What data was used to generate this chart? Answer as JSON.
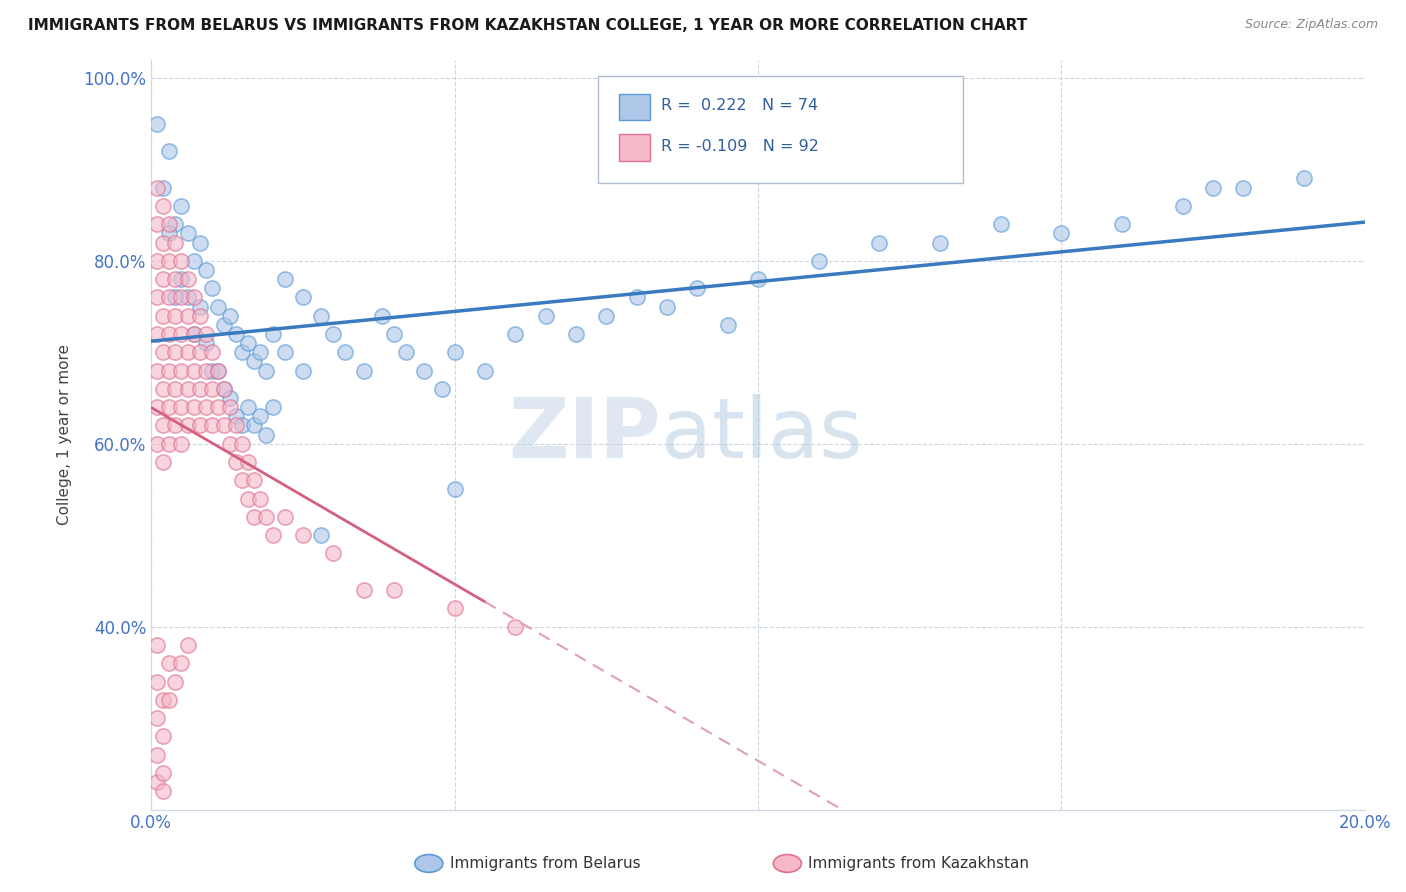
{
  "title": "IMMIGRANTS FROM BELARUS VS IMMIGRANTS FROM KAZAKHSTAN COLLEGE, 1 YEAR OR MORE CORRELATION CHART",
  "source": "Source: ZipAtlas.com",
  "ylabel": "College, 1 year or more",
  "xlabel_blue": "Immigrants from Belarus",
  "xlabel_pink": "Immigrants from Kazakhstan",
  "r_blue": 0.222,
  "n_blue": 74,
  "r_pink": -0.109,
  "n_pink": 92,
  "xlim": [
    0.0,
    0.2
  ],
  "ylim": [
    0.2,
    1.02
  ],
  "blue_color": "#aec6e8",
  "blue_edge_color": "#5b9bd5",
  "pink_color": "#f4b8c8",
  "pink_edge_color": "#e07090",
  "blue_line_color": "#3a7abf",
  "pink_line_color": "#d46080",
  "pink_dash_color": "#e0a0b4",
  "watermark_zip": "ZIP",
  "watermark_atlas": "atlas",
  "seed": 99,
  "blue_points": [
    [
      0.001,
      0.95
    ],
    [
      0.002,
      0.88
    ],
    [
      0.003,
      0.92
    ],
    [
      0.004,
      0.84
    ],
    [
      0.005,
      0.86
    ],
    [
      0.005,
      0.78
    ],
    [
      0.006,
      0.83
    ],
    [
      0.006,
      0.76
    ],
    [
      0.007,
      0.8
    ],
    [
      0.007,
      0.72
    ],
    [
      0.008,
      0.82
    ],
    [
      0.008,
      0.75
    ],
    [
      0.009,
      0.79
    ],
    [
      0.009,
      0.71
    ],
    [
      0.01,
      0.77
    ],
    [
      0.01,
      0.68
    ],
    [
      0.011,
      0.75
    ],
    [
      0.011,
      0.68
    ],
    [
      0.012,
      0.73
    ],
    [
      0.012,
      0.66
    ],
    [
      0.013,
      0.74
    ],
    [
      0.013,
      0.65
    ],
    [
      0.014,
      0.72
    ],
    [
      0.014,
      0.63
    ],
    [
      0.015,
      0.7
    ],
    [
      0.015,
      0.62
    ],
    [
      0.016,
      0.71
    ],
    [
      0.016,
      0.64
    ],
    [
      0.017,
      0.69
    ],
    [
      0.017,
      0.62
    ],
    [
      0.018,
      0.7
    ],
    [
      0.018,
      0.63
    ],
    [
      0.019,
      0.68
    ],
    [
      0.019,
      0.61
    ],
    [
      0.02,
      0.72
    ],
    [
      0.02,
      0.64
    ],
    [
      0.022,
      0.78
    ],
    [
      0.022,
      0.7
    ],
    [
      0.025,
      0.76
    ],
    [
      0.025,
      0.68
    ],
    [
      0.028,
      0.74
    ],
    [
      0.03,
      0.72
    ],
    [
      0.032,
      0.7
    ],
    [
      0.035,
      0.68
    ],
    [
      0.038,
      0.74
    ],
    [
      0.04,
      0.72
    ],
    [
      0.042,
      0.7
    ],
    [
      0.045,
      0.68
    ],
    [
      0.048,
      0.66
    ],
    [
      0.05,
      0.7
    ],
    [
      0.055,
      0.68
    ],
    [
      0.06,
      0.72
    ],
    [
      0.065,
      0.74
    ],
    [
      0.07,
      0.72
    ],
    [
      0.075,
      0.74
    ],
    [
      0.08,
      0.76
    ],
    [
      0.085,
      0.75
    ],
    [
      0.09,
      0.77
    ],
    [
      0.1,
      0.78
    ],
    [
      0.11,
      0.8
    ],
    [
      0.12,
      0.82
    ],
    [
      0.13,
      0.82
    ],
    [
      0.14,
      0.84
    ],
    [
      0.15,
      0.83
    ],
    [
      0.003,
      0.83
    ],
    [
      0.004,
      0.76
    ],
    [
      0.05,
      0.55
    ],
    [
      0.028,
      0.5
    ],
    [
      0.16,
      0.84
    ],
    [
      0.17,
      0.86
    ],
    [
      0.175,
      0.88
    ],
    [
      0.18,
      0.88
    ],
    [
      0.19,
      0.89
    ],
    [
      0.095,
      0.73
    ]
  ],
  "pink_points": [
    [
      0.001,
      0.88
    ],
    [
      0.001,
      0.84
    ],
    [
      0.001,
      0.8
    ],
    [
      0.001,
      0.76
    ],
    [
      0.001,
      0.72
    ],
    [
      0.001,
      0.68
    ],
    [
      0.001,
      0.64
    ],
    [
      0.001,
      0.6
    ],
    [
      0.002,
      0.86
    ],
    [
      0.002,
      0.82
    ],
    [
      0.002,
      0.78
    ],
    [
      0.002,
      0.74
    ],
    [
      0.002,
      0.7
    ],
    [
      0.002,
      0.66
    ],
    [
      0.002,
      0.62
    ],
    [
      0.002,
      0.58
    ],
    [
      0.003,
      0.84
    ],
    [
      0.003,
      0.8
    ],
    [
      0.003,
      0.76
    ],
    [
      0.003,
      0.72
    ],
    [
      0.003,
      0.68
    ],
    [
      0.003,
      0.64
    ],
    [
      0.003,
      0.6
    ],
    [
      0.004,
      0.82
    ],
    [
      0.004,
      0.78
    ],
    [
      0.004,
      0.74
    ],
    [
      0.004,
      0.7
    ],
    [
      0.004,
      0.66
    ],
    [
      0.004,
      0.62
    ],
    [
      0.005,
      0.8
    ],
    [
      0.005,
      0.76
    ],
    [
      0.005,
      0.72
    ],
    [
      0.005,
      0.68
    ],
    [
      0.005,
      0.64
    ],
    [
      0.005,
      0.6
    ],
    [
      0.006,
      0.78
    ],
    [
      0.006,
      0.74
    ],
    [
      0.006,
      0.7
    ],
    [
      0.006,
      0.66
    ],
    [
      0.006,
      0.62
    ],
    [
      0.007,
      0.76
    ],
    [
      0.007,
      0.72
    ],
    [
      0.007,
      0.68
    ],
    [
      0.007,
      0.64
    ],
    [
      0.008,
      0.74
    ],
    [
      0.008,
      0.7
    ],
    [
      0.008,
      0.66
    ],
    [
      0.008,
      0.62
    ],
    [
      0.009,
      0.72
    ],
    [
      0.009,
      0.68
    ],
    [
      0.009,
      0.64
    ],
    [
      0.01,
      0.7
    ],
    [
      0.01,
      0.66
    ],
    [
      0.01,
      0.62
    ],
    [
      0.011,
      0.68
    ],
    [
      0.011,
      0.64
    ],
    [
      0.012,
      0.66
    ],
    [
      0.012,
      0.62
    ],
    [
      0.013,
      0.64
    ],
    [
      0.013,
      0.6
    ],
    [
      0.014,
      0.62
    ],
    [
      0.014,
      0.58
    ],
    [
      0.015,
      0.6
    ],
    [
      0.015,
      0.56
    ],
    [
      0.016,
      0.58
    ],
    [
      0.016,
      0.54
    ],
    [
      0.017,
      0.56
    ],
    [
      0.017,
      0.52
    ],
    [
      0.018,
      0.54
    ],
    [
      0.019,
      0.52
    ],
    [
      0.02,
      0.5
    ],
    [
      0.022,
      0.52
    ],
    [
      0.025,
      0.5
    ],
    [
      0.03,
      0.48
    ],
    [
      0.035,
      0.44
    ],
    [
      0.04,
      0.44
    ],
    [
      0.001,
      0.38
    ],
    [
      0.001,
      0.34
    ],
    [
      0.001,
      0.3
    ],
    [
      0.001,
      0.26
    ],
    [
      0.001,
      0.23
    ],
    [
      0.002,
      0.32
    ],
    [
      0.002,
      0.28
    ],
    [
      0.002,
      0.24
    ],
    [
      0.002,
      0.22
    ],
    [
      0.05,
      0.42
    ],
    [
      0.06,
      0.4
    ],
    [
      0.003,
      0.36
    ],
    [
      0.003,
      0.32
    ],
    [
      0.004,
      0.34
    ],
    [
      0.005,
      0.36
    ],
    [
      0.006,
      0.38
    ]
  ]
}
